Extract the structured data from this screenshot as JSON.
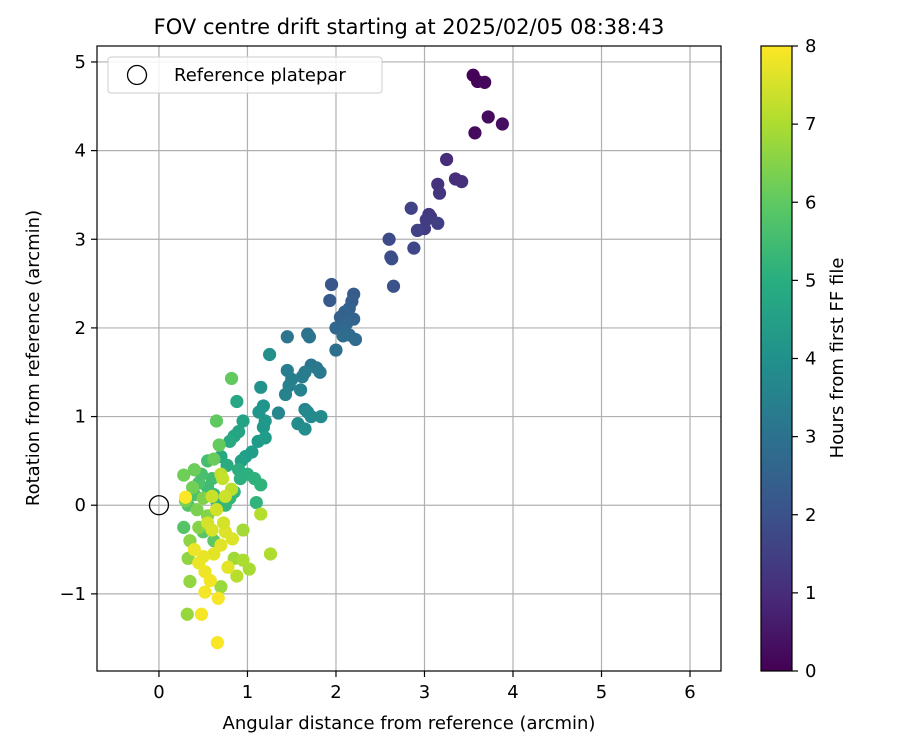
{
  "chart_data": {
    "type": "scatter",
    "title": "FOV centre drift starting at 2025/02/05 08:38:43",
    "xlabel": "Angular distance from reference (arcmin)",
    "ylabel": "Rotation from reference (arcmin)",
    "xlim": [
      -0.7,
      6.35
    ],
    "ylim": [
      -1.87,
      5.18
    ],
    "xticks": [
      0,
      1,
      2,
      3,
      4,
      5,
      6
    ],
    "yticks": [
      -1,
      0,
      1,
      2,
      3,
      4,
      5
    ],
    "grid": true,
    "legend": {
      "placement": "top-left",
      "entries": [
        {
          "label": "Reference platepar",
          "marker": "hollow-circle"
        }
      ]
    },
    "reference_point": {
      "x": 0,
      "y": 0
    },
    "colorbar": {
      "label": "Hours from first FF file",
      "colormap": "viridis",
      "range": [
        0,
        8
      ],
      "ticks": [
        0,
        1,
        2,
        3,
        4,
        5,
        6,
        7,
        8
      ]
    },
    "points": [
      {
        "x": 3.55,
        "y": 4.85,
        "c": 0.05
      },
      {
        "x": 3.6,
        "y": 4.78,
        "c": 0.1
      },
      {
        "x": 3.68,
        "y": 4.77,
        "c": 0.15
      },
      {
        "x": 3.57,
        "y": 4.2,
        "c": 0.2
      },
      {
        "x": 3.72,
        "y": 4.38,
        "c": 0.25
      },
      {
        "x": 3.88,
        "y": 4.3,
        "c": 0.3
      },
      {
        "x": 3.25,
        "y": 3.9,
        "c": 1.0
      },
      {
        "x": 3.35,
        "y": 3.68,
        "c": 1.05
      },
      {
        "x": 3.42,
        "y": 3.65,
        "c": 1.1
      },
      {
        "x": 3.15,
        "y": 3.62,
        "c": 1.15
      },
      {
        "x": 3.17,
        "y": 3.52,
        "c": 1.2
      },
      {
        "x": 3.05,
        "y": 3.28,
        "c": 1.3
      },
      {
        "x": 3.07,
        "y": 3.25,
        "c": 1.35
      },
      {
        "x": 3.02,
        "y": 3.22,
        "c": 1.4
      },
      {
        "x": 3.0,
        "y": 3.12,
        "c": 1.45
      },
      {
        "x": 3.15,
        "y": 3.18,
        "c": 1.5
      },
      {
        "x": 2.92,
        "y": 3.1,
        "c": 1.55
      },
      {
        "x": 2.85,
        "y": 3.35,
        "c": 1.6
      },
      {
        "x": 2.88,
        "y": 2.9,
        "c": 1.7
      },
      {
        "x": 2.6,
        "y": 3.0,
        "c": 1.8
      },
      {
        "x": 2.62,
        "y": 2.8,
        "c": 1.85
      },
      {
        "x": 2.63,
        "y": 2.78,
        "c": 1.9
      },
      {
        "x": 2.65,
        "y": 2.47,
        "c": 2.0
      },
      {
        "x": 1.95,
        "y": 2.49,
        "c": 2.2
      },
      {
        "x": 1.93,
        "y": 2.31,
        "c": 2.25
      },
      {
        "x": 2.2,
        "y": 2.38,
        "c": 2.3
      },
      {
        "x": 2.18,
        "y": 2.3,
        "c": 2.35
      },
      {
        "x": 2.15,
        "y": 2.22,
        "c": 2.4
      },
      {
        "x": 2.05,
        "y": 2.12,
        "c": 2.45
      },
      {
        "x": 2.1,
        "y": 2.18,
        "c": 2.5
      },
      {
        "x": 2.2,
        "y": 2.1,
        "c": 2.55
      },
      {
        "x": 2.12,
        "y": 2.05,
        "c": 2.6
      },
      {
        "x": 2.0,
        "y": 2.0,
        "c": 2.65
      },
      {
        "x": 2.08,
        "y": 1.97,
        "c": 2.7
      },
      {
        "x": 2.15,
        "y": 1.92,
        "c": 2.75
      },
      {
        "x": 2.22,
        "y": 1.87,
        "c": 2.8
      },
      {
        "x": 2.08,
        "y": 1.91,
        "c": 2.85
      },
      {
        "x": 2.0,
        "y": 1.75,
        "c": 2.9
      },
      {
        "x": 1.68,
        "y": 1.93,
        "c": 3.0
      },
      {
        "x": 1.7,
        "y": 1.9,
        "c": 3.05
      },
      {
        "x": 1.45,
        "y": 1.9,
        "c": 3.1
      },
      {
        "x": 1.72,
        "y": 1.58,
        "c": 3.15
      },
      {
        "x": 1.78,
        "y": 1.55,
        "c": 3.2
      },
      {
        "x": 1.82,
        "y": 1.5,
        "c": 3.25
      },
      {
        "x": 1.65,
        "y": 1.5,
        "c": 3.3
      },
      {
        "x": 1.62,
        "y": 1.45,
        "c": 3.35
      },
      {
        "x": 1.45,
        "y": 1.52,
        "c": 3.4
      },
      {
        "x": 1.5,
        "y": 1.42,
        "c": 3.45
      },
      {
        "x": 1.47,
        "y": 1.35,
        "c": 3.5
      },
      {
        "x": 1.6,
        "y": 1.3,
        "c": 3.55
      },
      {
        "x": 1.43,
        "y": 1.25,
        "c": 3.6
      },
      {
        "x": 1.65,
        "y": 1.08,
        "c": 3.65
      },
      {
        "x": 1.35,
        "y": 1.04,
        "c": 3.7
      },
      {
        "x": 1.68,
        "y": 1.05,
        "c": 3.75
      },
      {
        "x": 1.72,
        "y": 1.0,
        "c": 3.8
      },
      {
        "x": 1.83,
        "y": 1.0,
        "c": 3.85
      },
      {
        "x": 1.57,
        "y": 0.92,
        "c": 3.9
      },
      {
        "x": 1.65,
        "y": 0.86,
        "c": 3.95
      },
      {
        "x": 1.25,
        "y": 1.7,
        "c": 4.0
      },
      {
        "x": 1.15,
        "y": 1.33,
        "c": 4.1
      },
      {
        "x": 1.18,
        "y": 1.12,
        "c": 4.15
      },
      {
        "x": 1.13,
        "y": 1.05,
        "c": 4.2
      },
      {
        "x": 1.2,
        "y": 0.95,
        "c": 4.25
      },
      {
        "x": 1.18,
        "y": 0.88,
        "c": 4.3
      },
      {
        "x": 1.12,
        "y": 0.72,
        "c": 4.35
      },
      {
        "x": 1.2,
        "y": 0.76,
        "c": 4.4
      },
      {
        "x": 1.05,
        "y": 0.6,
        "c": 4.45
      },
      {
        "x": 0.98,
        "y": 0.55,
        "c": 4.5
      },
      {
        "x": 0.93,
        "y": 0.5,
        "c": 4.55
      },
      {
        "x": 0.95,
        "y": 0.95,
        "c": 4.6
      },
      {
        "x": 0.9,
        "y": 0.83,
        "c": 4.65
      },
      {
        "x": 0.85,
        "y": 0.78,
        "c": 4.7
      },
      {
        "x": 0.88,
        "y": 1.17,
        "c": 4.75
      },
      {
        "x": 0.8,
        "y": 0.72,
        "c": 4.8
      },
      {
        "x": 0.7,
        "y": 0.55,
        "c": 4.85
      },
      {
        "x": 0.77,
        "y": 0.45,
        "c": 4.9
      },
      {
        "x": 0.9,
        "y": 0.4,
        "c": 4.95
      },
      {
        "x": 0.92,
        "y": 0.3,
        "c": 5.0
      },
      {
        "x": 1.0,
        "y": 0.35,
        "c": 5.05
      },
      {
        "x": 1.08,
        "y": 0.3,
        "c": 5.1
      },
      {
        "x": 1.15,
        "y": 0.23,
        "c": 5.15
      },
      {
        "x": 1.1,
        "y": 0.03,
        "c": 5.2
      },
      {
        "x": 0.85,
        "y": 0.15,
        "c": 5.25
      },
      {
        "x": 0.8,
        "y": 0.08,
        "c": 5.3
      },
      {
        "x": 0.75,
        "y": 0.0,
        "c": 5.35
      },
      {
        "x": 0.65,
        "y": 0.05,
        "c": 5.4
      },
      {
        "x": 0.62,
        "y": 0.12,
        "c": 5.45
      },
      {
        "x": 0.55,
        "y": 0.2,
        "c": 5.5
      },
      {
        "x": 0.6,
        "y": 0.3,
        "c": 5.55
      },
      {
        "x": 0.55,
        "y": 0.5,
        "c": 5.6
      },
      {
        "x": 0.48,
        "y": 0.35,
        "c": 5.65
      },
      {
        "x": 0.45,
        "y": 0.25,
        "c": 5.7
      },
      {
        "x": 0.4,
        "y": 0.12,
        "c": 5.75
      },
      {
        "x": 0.33,
        "y": 0.0,
        "c": 5.8
      },
      {
        "x": 0.28,
        "y": -0.25,
        "c": 5.85
      },
      {
        "x": 0.5,
        "y": -0.3,
        "c": 5.9
      },
      {
        "x": 0.62,
        "y": -0.4,
        "c": 5.95
      },
      {
        "x": 0.65,
        "y": 0.95,
        "c": 6.0
      },
      {
        "x": 0.82,
        "y": 1.43,
        "c": 6.05
      },
      {
        "x": 0.68,
        "y": 0.68,
        "c": 6.1
      },
      {
        "x": 0.62,
        "y": 0.52,
        "c": 6.15
      },
      {
        "x": 0.4,
        "y": 0.4,
        "c": 6.2
      },
      {
        "x": 0.28,
        "y": 0.34,
        "c": 6.25
      },
      {
        "x": 0.38,
        "y": 0.2,
        "c": 6.3
      },
      {
        "x": 0.3,
        "y": 0.05,
        "c": 6.35
      },
      {
        "x": 0.43,
        "y": -0.05,
        "c": 6.4
      },
      {
        "x": 0.5,
        "y": 0.08,
        "c": 6.45
      },
      {
        "x": 0.55,
        "y": -0.12,
        "c": 6.5
      },
      {
        "x": 0.45,
        "y": -0.25,
        "c": 6.55
      },
      {
        "x": 0.35,
        "y": -0.4,
        "c": 6.6
      },
      {
        "x": 0.33,
        "y": -0.6,
        "c": 6.65
      },
      {
        "x": 0.35,
        "y": -0.86,
        "c": 6.7
      },
      {
        "x": 0.32,
        "y": -1.23,
        "c": 6.75
      },
      {
        "x": 0.7,
        "y": -0.92,
        "c": 6.8
      },
      {
        "x": 0.85,
        "y": -0.6,
        "c": 6.85
      },
      {
        "x": 0.95,
        "y": -0.28,
        "c": 6.9
      },
      {
        "x": 1.02,
        "y": -0.72,
        "c": 6.95
      },
      {
        "x": 0.95,
        "y": -0.62,
        "c": 7.0
      },
      {
        "x": 1.26,
        "y": -0.55,
        "c": 7.05
      },
      {
        "x": 1.15,
        "y": -0.1,
        "c": 7.1
      },
      {
        "x": 0.88,
        "y": -0.8,
        "c": 7.15
      },
      {
        "x": 0.82,
        "y": 0.18,
        "c": 7.2
      },
      {
        "x": 0.7,
        "y": 0.35,
        "c": 7.25
      },
      {
        "x": 0.72,
        "y": 0.3,
        "c": 7.3
      },
      {
        "x": 0.6,
        "y": 0.1,
        "c": 7.35
      },
      {
        "x": 0.75,
        "y": 0.1,
        "c": 7.4
      },
      {
        "x": 0.65,
        "y": -0.05,
        "c": 7.45
      },
      {
        "x": 0.55,
        "y": -0.2,
        "c": 7.5
      },
      {
        "x": 0.6,
        "y": -0.28,
        "c": 7.55
      },
      {
        "x": 0.75,
        "y": -0.3,
        "c": 7.6
      },
      {
        "x": 0.7,
        "y": -0.45,
        "c": 7.65
      },
      {
        "x": 0.62,
        "y": -0.55,
        "c": 7.7
      },
      {
        "x": 0.5,
        "y": -0.58,
        "c": 7.75
      },
      {
        "x": 0.45,
        "y": -0.65,
        "c": 7.78
      },
      {
        "x": 0.4,
        "y": -0.5,
        "c": 7.8
      },
      {
        "x": 0.52,
        "y": -0.75,
        "c": 7.82
      },
      {
        "x": 0.58,
        "y": -0.85,
        "c": 7.85
      },
      {
        "x": 0.52,
        "y": -0.98,
        "c": 7.88
      },
      {
        "x": 0.48,
        "y": -1.23,
        "c": 7.9
      },
      {
        "x": 0.67,
        "y": -1.05,
        "c": 7.92
      },
      {
        "x": 0.66,
        "y": -1.55,
        "c": 7.95
      },
      {
        "x": 0.3,
        "y": 0.09,
        "c": 7.98
      },
      {
        "x": 0.78,
        "y": -0.7,
        "c": 7.7
      },
      {
        "x": 0.83,
        "y": -0.38,
        "c": 7.6
      },
      {
        "x": 0.73,
        "y": -0.2,
        "c": 7.5
      }
    ]
  }
}
